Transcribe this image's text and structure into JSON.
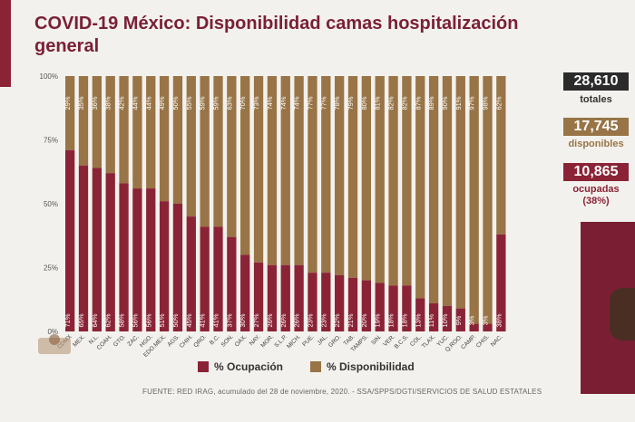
{
  "title": "COVID-19 México: Disponibilidad camas hospitalización general",
  "colors": {
    "occupied": "#8b2336",
    "available": "#987446",
    "title": "#7a2035",
    "stat_dark": "#2b2b2b"
  },
  "stats": {
    "total_value": "28,610",
    "total_label": "totales",
    "available_value": "17,745",
    "available_label": "disponibles",
    "occupied_value": "10,865",
    "occupied_label": "ocupadas",
    "occupied_pct": "(38%)"
  },
  "legend": {
    "occupied": "% Ocupación",
    "available": "% Disponibilidad"
  },
  "source": "FUENTE: RED IRAG, acumulado del 28 de noviembre, 2020.  -  SSA/SPPS/DGTI/SERVICIOS DE SALUD ESTATALES",
  "chart_data": {
    "type": "bar",
    "stacked": true,
    "percent_axis": true,
    "categories": [
      "CDMX",
      "MEX.",
      "N.L.",
      "COAH.",
      "GTO.",
      "ZAC.",
      "HGO.",
      "EDO.MEX.",
      "AGS.",
      "CHIH.",
      "QRO.",
      "B.C.",
      "SON.",
      "OAX.",
      "NAY.",
      "MOR.",
      "S.L.P.",
      "MICH.",
      "PUE.",
      "JAL.",
      "GRO.",
      "TAB.",
      "TAMPS.",
      "SIN.",
      "VER.",
      "B.C.S.",
      "COL.",
      "TLAX.",
      "YUC.",
      "Q.ROO.",
      "CAMP.",
      "CHIS.",
      "NAC."
    ],
    "series": [
      {
        "name": "% Ocupación",
        "values": [
          71,
          65,
          64,
          62,
          58,
          56,
          56,
          51,
          50,
          45,
          41,
          41,
          37,
          30,
          27,
          26,
          26,
          26,
          23,
          23,
          22,
          21,
          20,
          19,
          18,
          18,
          13,
          11,
          10,
          9,
          3,
          3,
          38
        ]
      },
      {
        "name": "% Disponibilidad",
        "values": [
          29,
          35,
          36,
          38,
          42,
          44,
          44,
          49,
          50,
          55,
          59,
          59,
          63,
          70,
          73,
          74,
          74,
          74,
          77,
          77,
          78,
          79,
          80,
          81,
          82,
          82,
          87,
          89,
          90,
          91,
          97,
          98,
          62
        ]
      }
    ],
    "yticks": [
      "0%",
      "25%",
      "50%",
      "75%",
      "100%"
    ],
    "ylim": [
      0,
      100
    ],
    "legend_position": "bottom"
  }
}
